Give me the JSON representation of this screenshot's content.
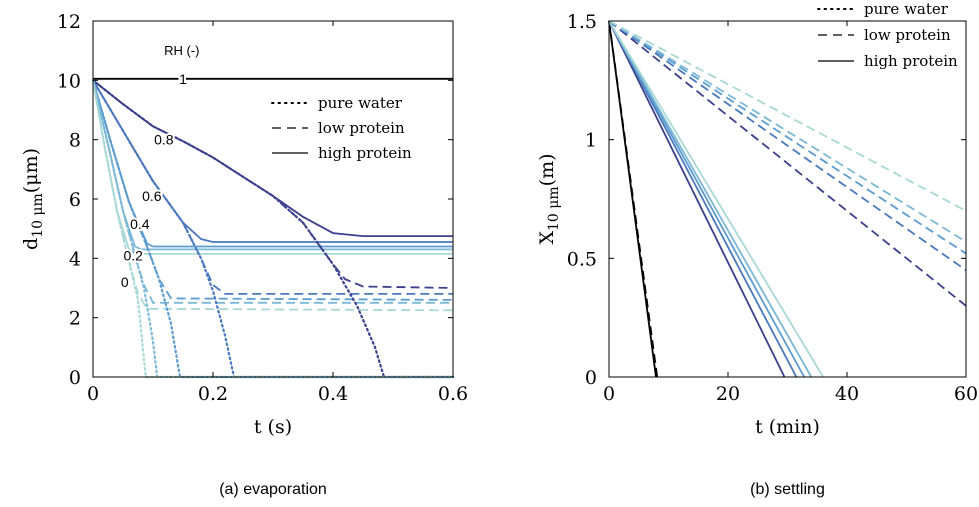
{
  "chart_data": [
    {
      "type": "line",
      "caption": "(a) evaporation",
      "xlabel": "t (s)",
      "ylabel_main": "d",
      "ylabel_sub": "10 μm",
      "ylabel_unit": "(μm)",
      "xlim": [
        0,
        0.6
      ],
      "ylim": [
        0,
        12
      ],
      "xticks": [
        0,
        0.2,
        0.4,
        0.6
      ],
      "xtick_labels": [
        "0",
        "0.2",
        "0.4",
        "0.6"
      ],
      "yticks": [
        0,
        2,
        4,
        6,
        8,
        10,
        12
      ],
      "ytick_labels": [
        "0",
        "2",
        "4",
        "6",
        "8",
        "10",
        "12"
      ],
      "rh_title": "RH (-)",
      "rh_labels": [
        {
          "text": "1",
          "x": 0.15,
          "y": 10.05
        },
        {
          "text": "0.8",
          "x": 0.118,
          "y": 8.0
        },
        {
          "text": "0.6",
          "x": 0.098,
          "y": 6.1
        },
        {
          "text": "0.4",
          "x": 0.078,
          "y": 5.15
        },
        {
          "text": "0.2",
          "x": 0.067,
          "y": 4.1
        },
        {
          "text": "0",
          "x": 0.053,
          "y": 3.2
        }
      ],
      "legend": {
        "position": "top-right",
        "entries": [
          {
            "label": "pure water",
            "style": "dotted"
          },
          {
            "label": "low protein",
            "style": "dashed"
          },
          {
            "label": "high protein",
            "style": "solid"
          }
        ]
      },
      "series": [
        {
          "rh": 1,
          "style": "solid",
          "color": "#000000",
          "x": [
            0,
            0.6
          ],
          "y": [
            10.05,
            10.05
          ]
        },
        {
          "rh": 0.8,
          "style": "solid",
          "color": "#3b3f8c",
          "x": [
            0,
            0.05,
            0.1,
            0.15,
            0.2,
            0.25,
            0.3,
            0.35,
            0.4,
            0.45,
            0.6
          ],
          "y": [
            10,
            9.2,
            8.45,
            7.95,
            7.4,
            6.75,
            6.1,
            5.4,
            4.85,
            4.75,
            4.75
          ]
        },
        {
          "rh": 0.6,
          "style": "solid",
          "color": "#4a78be",
          "x": [
            0,
            0.05,
            0.1,
            0.15,
            0.18,
            0.2,
            0.6
          ],
          "y": [
            10,
            8.3,
            6.6,
            5.2,
            4.65,
            4.55,
            4.55
          ]
        },
        {
          "rh": 0.4,
          "style": "solid",
          "color": "#5b9bcf",
          "x": [
            0,
            0.03,
            0.06,
            0.09,
            0.1,
            0.6
          ],
          "y": [
            10,
            7.9,
            5.9,
            4.5,
            4.4,
            4.4
          ]
        },
        {
          "rh": 0.2,
          "style": "solid",
          "color": "#7ab8d6",
          "x": [
            0,
            0.03,
            0.05,
            0.07,
            0.08,
            0.6
          ],
          "y": [
            10,
            7.4,
            5.6,
            4.4,
            4.3,
            4.3
          ]
        },
        {
          "rh": 0,
          "style": "solid",
          "color": "#a8d8d6",
          "x": [
            0,
            0.02,
            0.04,
            0.06,
            0.07,
            0.6
          ],
          "y": [
            10,
            7.7,
            5.6,
            4.3,
            4.15,
            4.15
          ]
        },
        {
          "rh": 0.8,
          "style": "dashed",
          "color": "#3b3f8c",
          "x": [
            0,
            0.05,
            0.1,
            0.15,
            0.2,
            0.25,
            0.3,
            0.35,
            0.4,
            0.42,
            0.45,
            0.6
          ],
          "y": [
            10,
            9.2,
            8.45,
            7.95,
            7.4,
            6.75,
            6.1,
            5.2,
            3.8,
            3.3,
            3.05,
            3.0
          ]
        },
        {
          "rh": 0.6,
          "style": "dashed",
          "color": "#4a78be",
          "x": [
            0,
            0.05,
            0.1,
            0.15,
            0.18,
            0.2,
            0.22,
            0.6
          ],
          "y": [
            10,
            8.3,
            6.6,
            5.2,
            4.0,
            3.1,
            2.8,
            2.8
          ]
        },
        {
          "rh": 0.4,
          "style": "dashed",
          "color": "#5b9bcf",
          "x": [
            0,
            0.03,
            0.06,
            0.09,
            0.11,
            0.13,
            0.6
          ],
          "y": [
            10,
            7.9,
            5.9,
            4.4,
            3.3,
            2.65,
            2.6
          ]
        },
        {
          "rh": 0.2,
          "style": "dashed",
          "color": "#7ab8d6",
          "x": [
            0,
            0.03,
            0.05,
            0.07,
            0.085,
            0.1,
            0.6
          ],
          "y": [
            10,
            7.4,
            5.6,
            4.1,
            3.1,
            2.5,
            2.5
          ]
        },
        {
          "rh": 0,
          "style": "dashed",
          "color": "#a8d8d6",
          "x": [
            0,
            0.02,
            0.04,
            0.06,
            0.075,
            0.09,
            0.6
          ],
          "y": [
            10,
            7.7,
            5.6,
            3.9,
            2.8,
            2.3,
            2.25
          ]
        },
        {
          "rh": 0.8,
          "style": "dotted",
          "color": "#3b3f8c",
          "x": [
            0,
            0.05,
            0.1,
            0.15,
            0.2,
            0.25,
            0.3,
            0.35,
            0.4,
            0.44,
            0.47,
            0.485,
            0.6
          ],
          "y": [
            10,
            9.2,
            8.45,
            7.95,
            7.4,
            6.75,
            6.1,
            5.2,
            3.8,
            2.4,
            1.0,
            0,
            0
          ]
        },
        {
          "rh": 0.6,
          "style": "dotted",
          "color": "#4a78be",
          "x": [
            0,
            0.05,
            0.1,
            0.15,
            0.18,
            0.2,
            0.22,
            0.235,
            0.6
          ],
          "y": [
            10,
            8.3,
            6.6,
            5.2,
            4.0,
            2.9,
            1.4,
            0,
            0
          ]
        },
        {
          "rh": 0.4,
          "style": "dotted",
          "color": "#5b9bcf",
          "x": [
            0,
            0.03,
            0.06,
            0.09,
            0.11,
            0.13,
            0.145,
            0.6
          ],
          "y": [
            10,
            7.9,
            5.9,
            4.4,
            3.3,
            1.8,
            0,
            0
          ]
        },
        {
          "rh": 0.2,
          "style": "dotted",
          "color": "#7ab8d6",
          "x": [
            0,
            0.03,
            0.05,
            0.07,
            0.085,
            0.1,
            0.107,
            0.6
          ],
          "y": [
            10,
            7.4,
            5.6,
            4.1,
            3.0,
            1.2,
            0,
            0
          ]
        },
        {
          "rh": 0,
          "style": "dotted",
          "color": "#a8d8d6",
          "x": [
            0,
            0.02,
            0.04,
            0.06,
            0.075,
            0.082,
            0.088,
            0.6
          ],
          "y": [
            10,
            7.7,
            5.6,
            3.9,
            2.6,
            1.2,
            0,
            0
          ]
        }
      ]
    },
    {
      "type": "line",
      "caption": "(b) settling",
      "xlabel": "t (min)",
      "ylabel_main": "X",
      "ylabel_sub": "10 μm",
      "ylabel_unit": "(m)",
      "xlim": [
        0,
        60
      ],
      "ylim": [
        0,
        1.5
      ],
      "xticks": [
        0,
        20,
        40,
        60
      ],
      "xtick_labels": [
        "0",
        "20",
        "40",
        "60"
      ],
      "yticks": [
        0,
        0.5,
        1,
        1.5
      ],
      "ytick_labels": [
        "0",
        "0.5",
        "1",
        "1.5"
      ],
      "legend": {
        "position": "top-right",
        "entries": [
          {
            "label": "pure water",
            "style": "dotted"
          },
          {
            "label": "low protein",
            "style": "dashed"
          },
          {
            "label": "high protein",
            "style": "solid"
          }
        ]
      },
      "series": [
        {
          "rh": 1,
          "style": "solid",
          "color": "#000000",
          "x": [
            0,
            7.9
          ],
          "y": [
            1.5,
            0
          ]
        },
        {
          "rh": 1,
          "style": "dashed",
          "color": "#000000",
          "x": [
            0,
            8.1
          ],
          "y": [
            1.5,
            0
          ]
        },
        {
          "rh": 0.8,
          "style": "solid",
          "color": "#3b3f8c",
          "x": [
            0,
            29.5
          ],
          "y": [
            1.5,
            0
          ]
        },
        {
          "rh": 0.6,
          "style": "solid",
          "color": "#4a78be",
          "x": [
            0,
            31.5
          ],
          "y": [
            1.5,
            0
          ]
        },
        {
          "rh": 0.4,
          "style": "solid",
          "color": "#5b9bcf",
          "x": [
            0,
            32.8
          ],
          "y": [
            1.5,
            0
          ]
        },
        {
          "rh": 0.2,
          "style": "solid",
          "color": "#7ab8d6",
          "x": [
            0,
            34.0
          ],
          "y": [
            1.5,
            0
          ]
        },
        {
          "rh": 0,
          "style": "solid",
          "color": "#a8d8d6",
          "x": [
            0,
            36.0
          ],
          "y": [
            1.5,
            0
          ]
        },
        {
          "rh": 0.8,
          "style": "dashed",
          "color": "#3b3f8c",
          "x": [
            0,
            60
          ],
          "y": [
            1.5,
            0.3
          ]
        },
        {
          "rh": 0.6,
          "style": "dashed",
          "color": "#4a78be",
          "x": [
            0,
            60
          ],
          "y": [
            1.5,
            0.45
          ]
        },
        {
          "rh": 0.4,
          "style": "dashed",
          "color": "#5b9bcf",
          "x": [
            0,
            60
          ],
          "y": [
            1.5,
            0.52
          ]
        },
        {
          "rh": 0.2,
          "style": "dashed",
          "color": "#7ab8d6",
          "x": [
            0,
            60
          ],
          "y": [
            1.5,
            0.57
          ]
        },
        {
          "rh": 0,
          "style": "dashed",
          "color": "#a8d8d6",
          "x": [
            0,
            60
          ],
          "y": [
            1.5,
            0.7
          ]
        }
      ]
    }
  ]
}
